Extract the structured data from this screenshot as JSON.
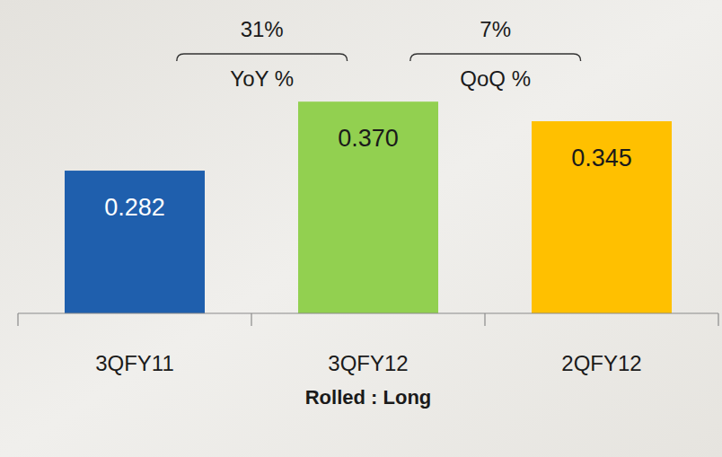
{
  "chart_data": {
    "type": "bar",
    "categories": [
      "3QFY11",
      "3QFY12",
      "2QFY12"
    ],
    "values": [
      0.282,
      0.37,
      0.345
    ],
    "value_labels": [
      "0.282",
      "0.370",
      "0.345"
    ],
    "colors": [
      "#1f5fad",
      "#92d050",
      "#ffc000"
    ],
    "x_label": "Rolled : Long",
    "ylim": [
      0.1,
      0.4
    ],
    "tick_labels": "x",
    "data_labels": true,
    "grid": false,
    "annotations": [
      {
        "text": "31%",
        "label": "YoY %"
      },
      {
        "text": "7%",
        "label": "QoQ %"
      }
    ]
  }
}
